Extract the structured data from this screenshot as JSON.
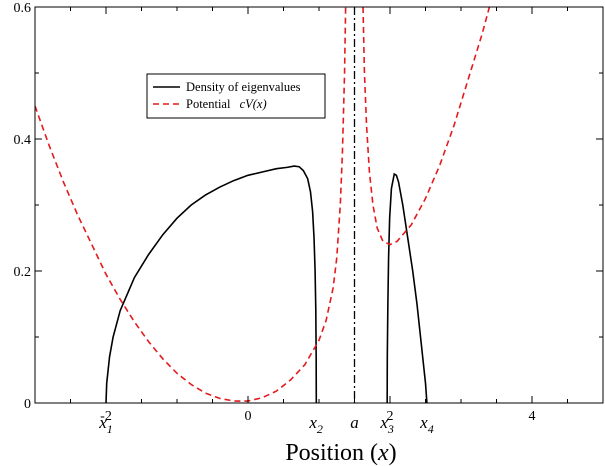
{
  "chart_data": {
    "type": "line",
    "xlabel_parts": [
      "Position (",
      "x",
      ")"
    ],
    "xlim": [
      -3.0,
      5.0
    ],
    "ylim": [
      0,
      0.6
    ],
    "x_ticks": [
      {
        "value": -2,
        "label": "-2"
      },
      {
        "value": 0,
        "label": "0"
      },
      {
        "value": 2,
        "label": "2"
      },
      {
        "value": 4,
        "label": "4"
      }
    ],
    "y_ticks": [
      {
        "value": 0,
        "label": "0"
      },
      {
        "value": 0.2,
        "label": "0.2"
      },
      {
        "value": 0.4,
        "label": "0.4"
      },
      {
        "value": 0.6,
        "label": "0.6"
      }
    ],
    "marked_points": [
      {
        "symbol": "x",
        "sub": "1",
        "x": -2.0
      },
      {
        "symbol": "x",
        "sub": "2",
        "x": 0.96
      },
      {
        "symbol": "a",
        "sub": "",
        "x": 1.5
      },
      {
        "symbol": "x",
        "sub": "3",
        "x": 1.96
      },
      {
        "symbol": "x",
        "sub": "4",
        "x": 2.52
      }
    ],
    "vertical_line": {
      "x": 1.5,
      "style": "dash-dot"
    },
    "legend_position": "upper-left-center",
    "series": [
      {
        "name": "Density of eigenvalues",
        "color": "#000000",
        "style": "solid",
        "points": [
          [
            -2.0,
            0.0
          ],
          [
            -1.99,
            0.03
          ],
          [
            -1.95,
            0.07
          ],
          [
            -1.9,
            0.1
          ],
          [
            -1.8,
            0.14
          ],
          [
            -1.6,
            0.19
          ],
          [
            -1.4,
            0.225
          ],
          [
            -1.2,
            0.255
          ],
          [
            -1.0,
            0.28
          ],
          [
            -0.8,
            0.3
          ],
          [
            -0.6,
            0.315
          ],
          [
            -0.4,
            0.327
          ],
          [
            -0.2,
            0.337
          ],
          [
            0.0,
            0.345
          ],
          [
            0.2,
            0.35
          ],
          [
            0.4,
            0.355
          ],
          [
            0.55,
            0.357
          ],
          [
            0.65,
            0.359
          ],
          [
            0.72,
            0.358
          ],
          [
            0.78,
            0.352
          ],
          [
            0.84,
            0.34
          ],
          [
            0.88,
            0.32
          ],
          [
            0.91,
            0.29
          ],
          [
            0.93,
            0.25
          ],
          [
            0.945,
            0.2
          ],
          [
            0.955,
            0.14
          ],
          [
            0.96,
            0.07
          ],
          [
            0.962,
            0.0
          ]
        ],
        "points_2": [
          [
            1.96,
            0.0
          ],
          [
            1.962,
            0.07
          ],
          [
            1.97,
            0.15
          ],
          [
            1.98,
            0.22
          ],
          [
            1.995,
            0.28
          ],
          [
            2.02,
            0.325
          ],
          [
            2.06,
            0.347
          ],
          [
            2.09,
            0.345
          ],
          [
            2.12,
            0.335
          ],
          [
            2.18,
            0.3
          ],
          [
            2.25,
            0.25
          ],
          [
            2.32,
            0.2
          ],
          [
            2.38,
            0.15
          ],
          [
            2.43,
            0.1
          ],
          [
            2.47,
            0.06
          ],
          [
            2.5,
            0.03
          ],
          [
            2.52,
            0.0
          ]
        ]
      },
      {
        "name": "Potential ",
        "name_math": "cV(x)",
        "color": "#e41a1c",
        "style": "dashed",
        "points": [
          [
            -3.0,
            0.45
          ],
          [
            -2.8,
            0.39
          ],
          [
            -2.6,
            0.335
          ],
          [
            -2.4,
            0.285
          ],
          [
            -2.2,
            0.24
          ],
          [
            -2.0,
            0.195
          ],
          [
            -1.8,
            0.157
          ],
          [
            -1.6,
            0.123
          ],
          [
            -1.4,
            0.093
          ],
          [
            -1.2,
            0.067
          ],
          [
            -1.0,
            0.045
          ],
          [
            -0.8,
            0.028
          ],
          [
            -0.6,
            0.015
          ],
          [
            -0.4,
            0.007
          ],
          [
            -0.2,
            0.003
          ],
          [
            0.0,
            0.003
          ],
          [
            0.2,
            0.008
          ],
          [
            0.4,
            0.018
          ],
          [
            0.6,
            0.035
          ],
          [
            0.8,
            0.058
          ],
          [
            1.0,
            0.095
          ],
          [
            1.1,
            0.125
          ],
          [
            1.2,
            0.175
          ],
          [
            1.25,
            0.22
          ],
          [
            1.3,
            0.3
          ],
          [
            1.33,
            0.38
          ],
          [
            1.36,
            0.5
          ],
          [
            1.375,
            0.6
          ]
        ],
        "points_2": [
          [
            1.62,
            0.6
          ],
          [
            1.64,
            0.5
          ],
          [
            1.67,
            0.42
          ],
          [
            1.71,
            0.35
          ],
          [
            1.76,
            0.3
          ],
          [
            1.82,
            0.265
          ],
          [
            1.9,
            0.245
          ],
          [
            2.0,
            0.24
          ],
          [
            2.1,
            0.245
          ],
          [
            2.3,
            0.27
          ],
          [
            2.5,
            0.31
          ],
          [
            2.7,
            0.36
          ],
          [
            2.9,
            0.42
          ],
          [
            3.1,
            0.49
          ],
          [
            3.3,
            0.56
          ],
          [
            3.4,
            0.6
          ]
        ]
      }
    ]
  }
}
